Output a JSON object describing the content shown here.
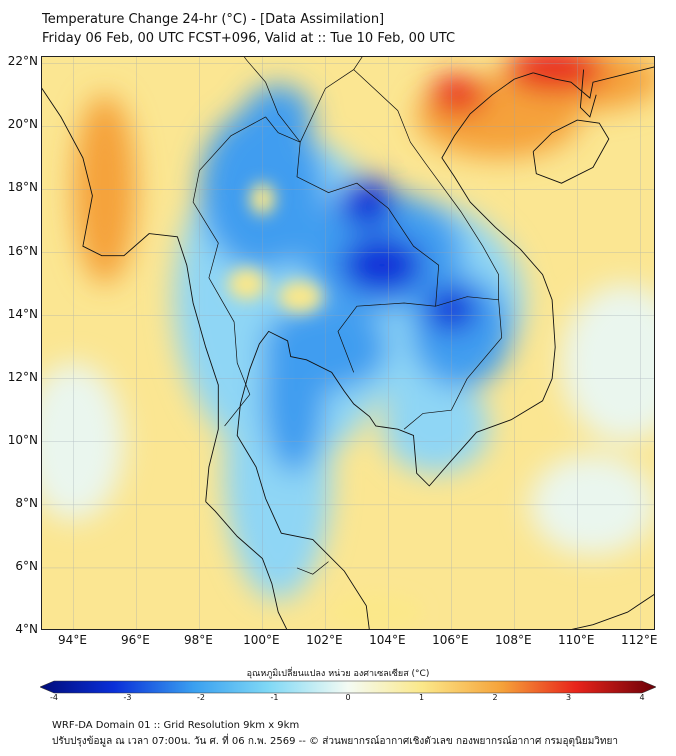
{
  "header": {
    "title_line1": "Temperature Change 24-hr (°C) - [Data Assimilation]",
    "title_line2": "Friday 06 Feb, 00 UTC FCST+096, Valid at :: Tue 10 Feb, 00 UTC"
  },
  "map": {
    "lat_labels": [
      "22°N",
      "20°N",
      "18°N",
      "16°N",
      "14°N",
      "12°N",
      "10°N",
      "8°N",
      "6°N",
      "4°N"
    ],
    "lon_labels": [
      "94°E",
      "96°E",
      "98°E",
      "100°E",
      "102°E",
      "104°E",
      "106°E",
      "108°E",
      "110°E",
      "112°E"
    ],
    "lat_range": [
      4,
      22.2
    ],
    "lon_range": [
      93,
      112.5
    ],
    "colors": {
      "strong_cold": "#0a2fd8",
      "cold": "#3f9df0",
      "cool": "#8fd6f5",
      "neutral": "#eaf6ee",
      "warm": "#fbe88a",
      "hot": "#f5a23a",
      "very_hot": "#e8241b"
    }
  },
  "colorbar": {
    "title": "อุณหภูมิเปลี่ยนแปลง หน่วย องศาเซลเซียส (°C)",
    "ticks": [
      "-4",
      "-3",
      "-2",
      "-1",
      "0",
      "1",
      "2",
      "3",
      "4"
    ],
    "range": [
      -4,
      4
    ]
  },
  "footer": {
    "line1": "WRF-DA Domain 01 :: Grid Resolution 9km x 9km",
    "line2": "ปรับปรุงข้อมูล ณ เวลา 07:00น. วัน ศ. ที่ 06 ก.พ. 2569 -- © ส่วนพยากรณ์อากาศเชิงตัวเลข กองพยากรณ์อากาศ กรมอุตุนิยมวิทยา"
  }
}
